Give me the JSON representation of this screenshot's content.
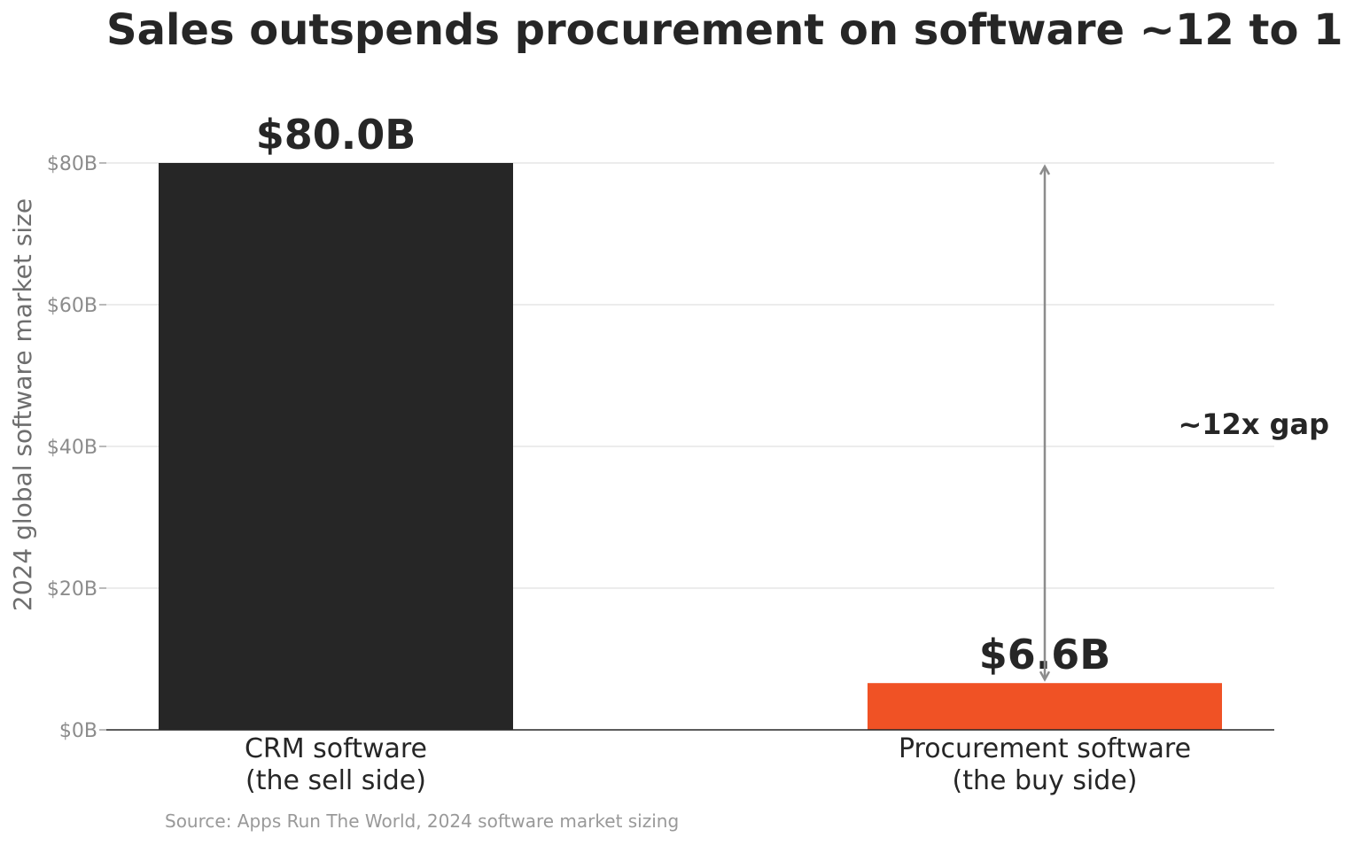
{
  "chart_data": {
    "type": "bar",
    "title": "Sales outspends procurement on software ~12 to 1",
    "ylabel": "2024 global software market size",
    "xlabel": "",
    "categories": [
      [
        "CRM software",
        "(the sell side)"
      ],
      [
        "Procurement software",
        "(the buy side)"
      ]
    ],
    "values": [
      80.0,
      6.6
    ],
    "value_labels": [
      "$80.0B",
      "$6.6B"
    ],
    "bar_colors": [
      "#262626",
      "#f05225"
    ],
    "ylim": [
      0,
      80
    ],
    "yticks": [
      0,
      20,
      40,
      60,
      80
    ],
    "ytick_labels": [
      "$0B",
      "$20B",
      "$40B",
      "$60B",
      "$80B"
    ],
    "grid": true,
    "annotation": {
      "text": "~12x gap",
      "arrow_from": 6.6,
      "arrow_to": 80,
      "arrow_category_index": 1
    },
    "source": "Source: Apps Run The World, 2024 software market sizing",
    "colors": {
      "text": "#262626",
      "tick_text": "#8c8c8c",
      "ylabel_text": "#6e6e6e",
      "grid": "#e6e6e6",
      "axis": "#262626",
      "arrow": "#8c8c8c",
      "source_text": "#999999"
    }
  }
}
